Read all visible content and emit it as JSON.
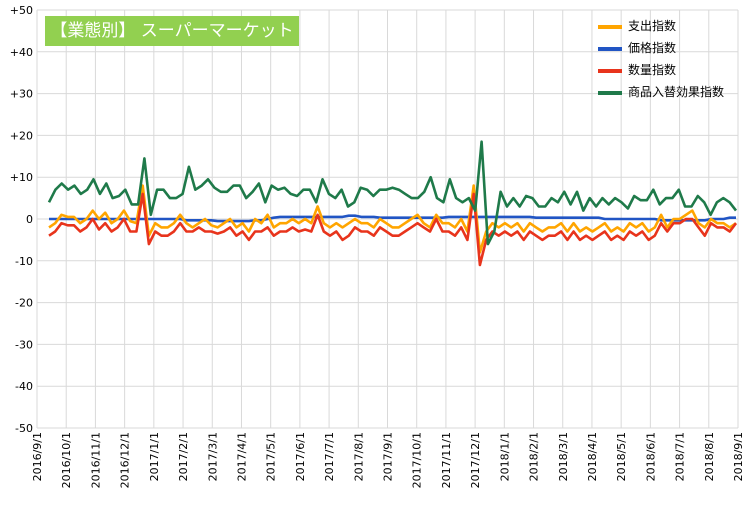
{
  "chart_data": {
    "type": "line",
    "title": "【業態別】 スーパーマーケット",
    "ylim": [
      -50,
      50
    ],
    "y_ticks": [
      "+50",
      "+40",
      "+30",
      "+20",
      "+10",
      "0",
      "-10",
      "-20",
      "-30",
      "-40",
      "-50"
    ],
    "y_tick_values": [
      50,
      40,
      30,
      20,
      10,
      0,
      -10,
      -20,
      -30,
      -40,
      -50
    ],
    "x_labels": [
      "2016/9/1",
      "2016/10/1",
      "2016/11/1",
      "2016/12/1",
      "2017/1/1",
      "2017/2/1",
      "2017/3/1",
      "2017/4/1",
      "2017/5/1",
      "2017/6/1",
      "2017/7/1",
      "2017/8/1",
      "2017/9/1",
      "2017/10/1",
      "2017/11/1",
      "2017/12/1",
      "2018/1/1",
      "2018/2/1",
      "2018/3/1",
      "2018/4/1",
      "2018/5/1",
      "2018/6/1",
      "2018/7/1",
      "2018/8/1",
      "2018/9/1"
    ],
    "grid": true,
    "legend_position": "top-right",
    "series": [
      {
        "name": "支出指数",
        "color": "#ffa500",
        "values": [
          -2,
          -1,
          1,
          0.5,
          0.5,
          -1,
          0,
          2,
          0,
          1.5,
          -1,
          0,
          2,
          -0.5,
          -1,
          8,
          -4,
          -1,
          -2,
          -2,
          -1,
          1,
          -1,
          -2,
          -1,
          0,
          -1.5,
          -2,
          -1,
          0,
          -2,
          -1,
          -3,
          0,
          -1,
          1,
          -2,
          -1,
          -1,
          0,
          -1,
          0,
          -1,
          3,
          -1,
          -2,
          -1,
          -2,
          -1,
          0,
          -1,
          -1,
          -2,
          0,
          -1,
          -2,
          -2,
          -1,
          0,
          1,
          -1,
          -2,
          1,
          -1,
          -1,
          -2,
          0,
          -3,
          8,
          -8,
          -3,
          -1,
          -2,
          -1,
          -2,
          -1,
          -3,
          -1,
          -2,
          -3,
          -2,
          -2,
          -1,
          -3,
          -1,
          -3,
          -2,
          -3,
          -2,
          -1,
          -3,
          -2,
          -3,
          -1,
          -2,
          -1,
          -3,
          -2,
          1,
          -2,
          0,
          0,
          1,
          2,
          -1,
          -2,
          0,
          -1,
          -1,
          -2,
          -1
        ],
        "note": ""
      },
      {
        "name": "価格指数",
        "color": "#2155c4",
        "values": [
          0,
          0,
          0,
          0,
          0,
          0,
          0,
          0,
          0,
          0,
          0,
          0,
          0,
          0,
          0,
          0,
          0,
          0,
          0,
          0,
          0,
          0,
          -0.3,
          -0.3,
          -0.3,
          -0.3,
          -0.3,
          -0.5,
          -0.5,
          -0.5,
          -0.5,
          -0.5,
          -0.5,
          -0.3,
          -0.3,
          0,
          0.3,
          0.5,
          0.5,
          0.5,
          0.5,
          0.5,
          0.5,
          0.5,
          0.5,
          0.5,
          0.5,
          0.5,
          0.8,
          0.8,
          0.5,
          0.5,
          0.5,
          0.3,
          0.3,
          0.3,
          0.3,
          0.3,
          0.3,
          0.3,
          0.3,
          0.3,
          0.3,
          0.3,
          0.5,
          0.5,
          0.5,
          0.5,
          0.5,
          0.5,
          0.5,
          0.5,
          0.5,
          0.5,
          0.5,
          0.5,
          0.5,
          0.5,
          0.3,
          0.3,
          0.3,
          0.3,
          0.3,
          0.3,
          0.3,
          0.3,
          0.3,
          0.3,
          0.3,
          0,
          0,
          0,
          0,
          0,
          0,
          0,
          0,
          0,
          -0.3,
          -0.3,
          -0.3,
          -0.3,
          -0.3,
          -0.3,
          -0.3,
          -0.3,
          0,
          0,
          0,
          0.3,
          0.3
        ],
        "note": ""
      },
      {
        "name": "数量指数",
        "color": "#e8341c",
        "values": [
          -4,
          -3,
          -1,
          -1.5,
          -1.5,
          -3,
          -2,
          0,
          -2.5,
          -1,
          -3,
          -2,
          0,
          -3,
          -3,
          6,
          -6,
          -3,
          -4,
          -4,
          -3,
          -1,
          -3,
          -3,
          -2,
          -3,
          -3,
          -3.5,
          -3,
          -2,
          -4,
          -3,
          -5,
          -3,
          -3,
          -2,
          -4,
          -3,
          -3,
          -2,
          -3,
          -2.5,
          -3,
          1,
          -3,
          -4,
          -3,
          -5,
          -4,
          -2,
          -3,
          -3,
          -4,
          -2,
          -3,
          -4,
          -4,
          -3,
          -2,
          -1,
          -2,
          -3,
          0,
          -3,
          -3,
          -4,
          -2,
          -5,
          6,
          -11,
          -5,
          -3,
          -4,
          -3,
          -4,
          -3,
          -5,
          -3,
          -4,
          -5,
          -4,
          -4,
          -3,
          -5,
          -3,
          -5,
          -4,
          -5,
          -4,
          -3,
          -5,
          -4,
          -5,
          -3,
          -4,
          -3,
          -5,
          -4,
          -1,
          -3,
          -1,
          -1,
          0,
          0,
          -2,
          -4,
          -1,
          -2,
          -2,
          -3,
          -1
        ],
        "note": ""
      },
      {
        "name": "商品入替効果指数",
        "color": "#1f7a4a",
        "values": [
          4,
          7,
          8.5,
          7,
          8,
          6,
          7,
          9.5,
          6,
          8.5,
          5,
          5.5,
          7,
          3.5,
          3.5,
          14.5,
          1,
          7,
          7,
          5,
          5,
          6,
          12.5,
          7,
          8,
          9.5,
          7.5,
          6.5,
          6.5,
          8,
          8,
          5,
          6.5,
          8.5,
          4,
          8,
          7,
          7.5,
          6,
          5.5,
          7,
          7,
          4,
          9.5,
          6,
          5,
          7,
          3,
          4,
          7.5,
          7,
          5.5,
          7,
          7,
          7.5,
          7,
          6,
          5,
          5,
          6.5,
          10,
          5,
          4,
          9.5,
          5,
          4,
          5,
          2,
          18.5,
          -6,
          -3,
          6.5,
          3,
          5,
          3,
          5.5,
          5,
          3,
          3,
          5,
          4,
          6.5,
          3.5,
          6.5,
          2,
          5,
          3,
          5,
          3.5,
          5,
          4,
          2.5,
          5.5,
          4.5,
          4.5,
          7,
          3.5,
          5,
          5,
          7,
          3,
          3,
          5.5,
          4,
          1,
          4,
          5,
          4,
          2
        ]
      }
    ]
  }
}
